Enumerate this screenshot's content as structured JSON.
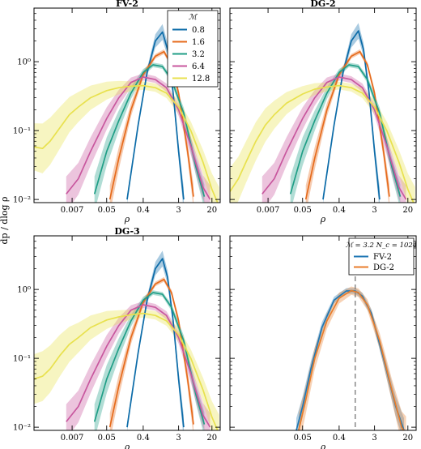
{
  "figure": {
    "ylabel": "dp / dlog ρ"
  },
  "chart_data": [
    {
      "type": "line",
      "title": "FV-2",
      "xlabel": "ρ",
      "ylabel": "dp / dlog ρ",
      "xscale": "log",
      "yscale": "log",
      "xlim": [
        0.0008,
        32
      ],
      "ylim": [
        0.009,
        6
      ],
      "xticks": [
        0.007,
        0.05,
        0.4,
        3,
        20
      ],
      "xtick_labels": [
        "0.007",
        "0.05",
        "0.4",
        "3",
        "20"
      ],
      "yticks": [
        0.01,
        0.1,
        1
      ],
      "ytick_labels": [
        "10⁻²",
        "10⁻¹",
        "10⁰"
      ],
      "legend": {
        "title": "ℳ",
        "placement": "top-right"
      },
      "bands": true,
      "series": [
        {
          "name": "0.8",
          "color": "#0b6ba8",
          "x": [
            0.16,
            0.3,
            0.5,
            0.8,
            1.2,
            1.6,
            2.2,
            3.0,
            4.0
          ],
          "y": [
            0.01,
            0.12,
            0.7,
            2.0,
            2.7,
            1.5,
            0.35,
            0.05,
            0.01
          ],
          "band": [
            1.15,
            1.1,
            1.15,
            1.25,
            1.3,
            1.25,
            1.2,
            1.3,
            1.5
          ]
        },
        {
          "name": "1.6",
          "color": "#e66b1c",
          "x": [
            0.06,
            0.1,
            0.2,
            0.4,
            0.8,
            1.3,
            2.0,
            3.0,
            5.0,
            7.0
          ],
          "y": [
            0.01,
            0.04,
            0.2,
            0.65,
            1.2,
            1.4,
            0.9,
            0.35,
            0.05,
            0.011
          ],
          "band": [
            1.6,
            1.45,
            1.25,
            1.12,
            1.08,
            1.08,
            1.1,
            1.15,
            1.3,
            1.5
          ]
        },
        {
          "name": "3.2",
          "color": "#1f9e86",
          "x": [
            0.025,
            0.05,
            0.1,
            0.2,
            0.4,
            0.7,
            1.2,
            2.0,
            4.0,
            8.0,
            13.0
          ],
          "y": [
            0.012,
            0.05,
            0.14,
            0.35,
            0.7,
            0.9,
            0.85,
            0.55,
            0.18,
            0.03,
            0.011
          ],
          "band": [
            1.8,
            1.6,
            1.4,
            1.22,
            1.12,
            1.08,
            1.08,
            1.12,
            1.2,
            1.35,
            1.5
          ]
        },
        {
          "name": "6.4",
          "color": "#c8579e",
          "x": [
            0.005,
            0.01,
            0.02,
            0.05,
            0.1,
            0.2,
            0.4,
            0.8,
            1.5,
            3.0,
            6.0,
            12.0,
            18.0
          ],
          "y": [
            0.012,
            0.02,
            0.05,
            0.15,
            0.3,
            0.5,
            0.6,
            0.55,
            0.42,
            0.2,
            0.06,
            0.015,
            0.01
          ],
          "band": [
            1.8,
            1.7,
            1.6,
            1.45,
            1.3,
            1.18,
            1.12,
            1.12,
            1.15,
            1.22,
            1.35,
            1.5,
            1.6
          ]
        },
        {
          "name": "12.8",
          "color": "#e8e14e",
          "x": [
            0.0008,
            0.0013,
            0.002,
            0.0035,
            0.006,
            0.01,
            0.02,
            0.05,
            0.1,
            0.2,
            0.4,
            0.8,
            1.5,
            3.0,
            6.0,
            12.0,
            20.0,
            30.0
          ],
          "y": [
            0.058,
            0.055,
            0.07,
            0.11,
            0.17,
            0.22,
            0.3,
            0.38,
            0.42,
            0.44,
            0.45,
            0.42,
            0.35,
            0.22,
            0.1,
            0.035,
            0.014,
            0.008
          ],
          "band": [
            2.2,
            2.3,
            2.2,
            2.0,
            1.8,
            1.65,
            1.5,
            1.35,
            1.25,
            1.18,
            1.15,
            1.15,
            1.18,
            1.25,
            1.35,
            1.5,
            1.7,
            1.9
          ]
        }
      ]
    },
    {
      "type": "line",
      "title": "DG-2",
      "xlabel": "ρ",
      "ylabel": "dp / dlog ρ",
      "xscale": "log",
      "yscale": "log",
      "xlim": [
        0.0008,
        32
      ],
      "ylim": [
        0.009,
        6
      ],
      "xticks": [
        0.007,
        0.05,
        0.4,
        3,
        20
      ],
      "xtick_labels": [
        "0.007",
        "0.05",
        "0.4",
        "3",
        "20"
      ],
      "yticks": [
        0.01,
        0.1,
        1
      ],
      "ytick_labels": [],
      "bands": true,
      "series": [
        {
          "name": "0.8",
          "color": "#0b6ba8",
          "x": [
            0.16,
            0.3,
            0.5,
            0.8,
            1.2,
            1.6,
            2.2,
            3.0,
            4.0
          ],
          "y": [
            0.01,
            0.12,
            0.7,
            2.0,
            2.8,
            1.5,
            0.35,
            0.05,
            0.01
          ],
          "band": [
            1.15,
            1.1,
            1.15,
            1.25,
            1.3,
            1.25,
            1.2,
            1.3,
            1.5
          ]
        },
        {
          "name": "1.6",
          "color": "#e66b1c",
          "x": [
            0.06,
            0.1,
            0.2,
            0.4,
            0.8,
            1.3,
            2.0,
            3.0,
            5.0,
            7.0
          ],
          "y": [
            0.01,
            0.04,
            0.2,
            0.65,
            1.2,
            1.4,
            0.9,
            0.35,
            0.05,
            0.011
          ],
          "band": [
            1.6,
            1.45,
            1.25,
            1.12,
            1.08,
            1.08,
            1.1,
            1.15,
            1.3,
            1.5
          ]
        },
        {
          "name": "3.2",
          "color": "#1f9e86",
          "x": [
            0.025,
            0.05,
            0.1,
            0.2,
            0.4,
            0.7,
            1.2,
            2.0,
            4.0,
            8.0,
            13.0
          ],
          "y": [
            0.012,
            0.05,
            0.14,
            0.35,
            0.7,
            0.9,
            0.85,
            0.55,
            0.18,
            0.03,
            0.011
          ],
          "band": [
            1.8,
            1.6,
            1.4,
            1.22,
            1.12,
            1.08,
            1.08,
            1.12,
            1.2,
            1.35,
            1.5
          ]
        },
        {
          "name": "6.4",
          "color": "#c8579e",
          "x": [
            0.005,
            0.01,
            0.02,
            0.05,
            0.1,
            0.2,
            0.4,
            0.8,
            1.5,
            3.0,
            6.0,
            12.0,
            18.0
          ],
          "y": [
            0.012,
            0.02,
            0.05,
            0.15,
            0.3,
            0.5,
            0.6,
            0.55,
            0.42,
            0.2,
            0.06,
            0.015,
            0.01
          ],
          "band": [
            1.8,
            1.7,
            1.6,
            1.45,
            1.3,
            1.18,
            1.12,
            1.12,
            1.15,
            1.22,
            1.35,
            1.5,
            1.6
          ]
        },
        {
          "name": "12.8",
          "color": "#e8e14e",
          "x": [
            0.0008,
            0.0013,
            0.002,
            0.0035,
            0.006,
            0.01,
            0.02,
            0.05,
            0.1,
            0.2,
            0.4,
            0.8,
            1.5,
            3.0,
            6.0,
            12.0,
            20.0,
            30.0
          ],
          "y": [
            0.013,
            0.02,
            0.035,
            0.07,
            0.12,
            0.17,
            0.25,
            0.34,
            0.4,
            0.43,
            0.45,
            0.42,
            0.35,
            0.22,
            0.1,
            0.035,
            0.014,
            0.008
          ],
          "band": [
            2.2,
            2.1,
            2.0,
            1.9,
            1.75,
            1.6,
            1.45,
            1.3,
            1.22,
            1.16,
            1.14,
            1.14,
            1.18,
            1.25,
            1.35,
            1.5,
            1.7,
            1.9
          ]
        }
      ]
    },
    {
      "type": "line",
      "title": "DG-3",
      "xlabel": "ρ",
      "ylabel": "dp / dlog ρ",
      "xscale": "log",
      "yscale": "log",
      "xlim": [
        0.0008,
        32
      ],
      "ylim": [
        0.009,
        6
      ],
      "xticks": [
        0.007,
        0.05,
        0.4,
        3,
        20
      ],
      "xtick_labels": [
        "0.007",
        "0.05",
        "0.4",
        "3",
        "20"
      ],
      "yticks": [
        0.01,
        0.1,
        1
      ],
      "ytick_labels": [
        "10⁻²",
        "10⁻¹",
        "10⁰"
      ],
      "bands": true,
      "series": [
        {
          "name": "0.8",
          "color": "#0b6ba8",
          "x": [
            0.16,
            0.3,
            0.5,
            0.8,
            1.2,
            1.6,
            2.2,
            3.0,
            4.0
          ],
          "y": [
            0.01,
            0.12,
            0.7,
            2.0,
            2.8,
            1.5,
            0.35,
            0.05,
            0.01
          ],
          "band": [
            1.15,
            1.1,
            1.15,
            1.25,
            1.3,
            1.25,
            1.2,
            1.3,
            1.5
          ]
        },
        {
          "name": "1.6",
          "color": "#e66b1c",
          "x": [
            0.06,
            0.1,
            0.2,
            0.4,
            0.8,
            1.3,
            2.0,
            3.0,
            5.0,
            7.0
          ],
          "y": [
            0.01,
            0.04,
            0.2,
            0.65,
            1.2,
            1.4,
            0.9,
            0.35,
            0.05,
            0.011
          ],
          "band": [
            1.6,
            1.45,
            1.25,
            1.12,
            1.08,
            1.08,
            1.1,
            1.15,
            1.3,
            1.5
          ]
        },
        {
          "name": "3.2",
          "color": "#1f9e86",
          "x": [
            0.025,
            0.05,
            0.1,
            0.2,
            0.4,
            0.7,
            1.2,
            2.0,
            4.0,
            8.0,
            13.0
          ],
          "y": [
            0.012,
            0.05,
            0.14,
            0.35,
            0.7,
            0.9,
            0.85,
            0.55,
            0.18,
            0.03,
            0.011
          ],
          "band": [
            1.8,
            1.6,
            1.4,
            1.22,
            1.12,
            1.08,
            1.08,
            1.12,
            1.2,
            1.35,
            1.5
          ]
        },
        {
          "name": "6.4",
          "color": "#c8579e",
          "x": [
            0.005,
            0.01,
            0.02,
            0.05,
            0.1,
            0.2,
            0.4,
            0.8,
            1.5,
            3.0,
            6.0,
            12.0,
            18.0
          ],
          "y": [
            0.012,
            0.02,
            0.05,
            0.15,
            0.3,
            0.5,
            0.6,
            0.55,
            0.42,
            0.2,
            0.06,
            0.015,
            0.01
          ],
          "band": [
            1.8,
            1.7,
            1.6,
            1.45,
            1.3,
            1.18,
            1.12,
            1.12,
            1.15,
            1.22,
            1.35,
            1.5,
            1.6
          ]
        },
        {
          "name": "12.8",
          "color": "#e8e14e",
          "x": [
            0.0008,
            0.0013,
            0.002,
            0.0035,
            0.006,
            0.01,
            0.02,
            0.05,
            0.1,
            0.2,
            0.4,
            0.8,
            1.5,
            3.0,
            6.0,
            12.0,
            20.0,
            30.0
          ],
          "y": [
            0.05,
            0.055,
            0.07,
            0.11,
            0.16,
            0.2,
            0.28,
            0.36,
            0.4,
            0.43,
            0.45,
            0.42,
            0.35,
            0.22,
            0.1,
            0.035,
            0.014,
            0.008
          ],
          "band": [
            2.3,
            2.3,
            2.2,
            2.0,
            1.8,
            1.65,
            1.5,
            1.35,
            1.25,
            1.18,
            1.15,
            1.15,
            1.18,
            1.25,
            1.35,
            1.5,
            1.7,
            1.9
          ]
        }
      ]
    },
    {
      "type": "line",
      "title": "",
      "xlabel": "ρ",
      "ylabel": "dp / dlog ρ",
      "xscale": "log",
      "yscale": "log",
      "xlim": [
        0.0008,
        32
      ],
      "ylim": [
        0.009,
        6
      ],
      "xticks": [
        0.05,
        0.4,
        3,
        20
      ],
      "xtick_labels": [
        "0.05",
        "0.4",
        "3",
        "20"
      ],
      "yticks": [
        0.01,
        0.1,
        1
      ],
      "ytick_labels": [],
      "legend": {
        "title": "ℳ = 3.2  N_c = 1024",
        "placement": "top-right"
      },
      "vline": {
        "x": 1.0,
        "style": "dashed",
        "color": "#777777"
      },
      "bands": true,
      "series": [
        {
          "name": "FV-2",
          "color": "#1f77b4",
          "x": [
            0.035,
            0.05,
            0.08,
            0.15,
            0.3,
            0.6,
            1.0,
            1.5,
            2.5,
            5.0,
            10.0,
            16.0
          ],
          "y": [
            0.009,
            0.02,
            0.07,
            0.28,
            0.7,
            0.95,
            0.95,
            0.8,
            0.45,
            0.1,
            0.02,
            0.009
          ],
          "band": [
            1.5,
            1.4,
            1.3,
            1.2,
            1.12,
            1.1,
            1.1,
            1.12,
            1.15,
            1.25,
            1.4,
            1.5
          ]
        },
        {
          "name": "DG-2",
          "color": "#e87d2b",
          "x": [
            0.04,
            0.06,
            0.1,
            0.2,
            0.4,
            0.8,
            1.2,
            2.0,
            4.0,
            8.0,
            14.0,
            18.0
          ],
          "y": [
            0.009,
            0.025,
            0.1,
            0.35,
            0.75,
            0.96,
            0.9,
            0.6,
            0.18,
            0.035,
            0.01,
            0.008
          ],
          "band": [
            1.8,
            1.6,
            1.45,
            1.3,
            1.2,
            1.15,
            1.15,
            1.2,
            1.3,
            1.45,
            1.7,
            1.8
          ]
        }
      ]
    }
  ]
}
